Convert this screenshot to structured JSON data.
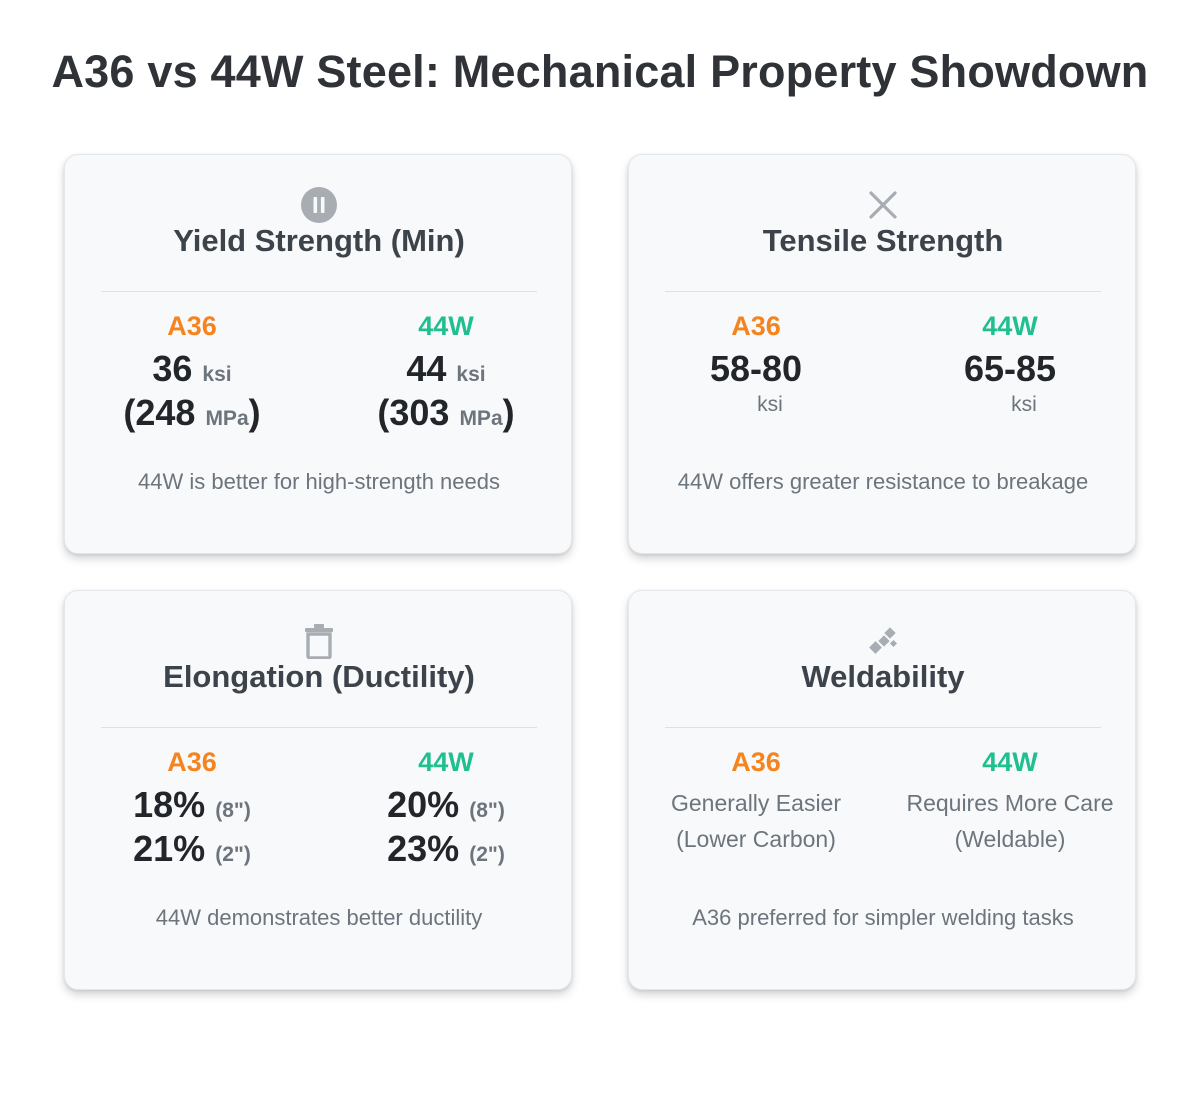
{
  "title": "A36 vs 44W Steel: Mechanical Property Showdown",
  "colors": {
    "a36": "#f5841f",
    "44w": "#1fbf8f",
    "icon": "#a7adb3"
  },
  "cards": [
    {
      "title": "Yield Strength (Min)",
      "icon": "pause-circle-icon",
      "a36": {
        "label": "A36",
        "value": "36",
        "unit": "ksi",
        "metric_open": "(248",
        "metric_unit": "MPa",
        "metric_close": ")"
      },
      "w44": {
        "label": "44W",
        "value": "44",
        "unit": "ksi",
        "metric_open": "(303",
        "metric_unit": "MPa",
        "metric_close": ")"
      },
      "note": "44W is better for high-strength needs"
    },
    {
      "title": "Tensile Strength",
      "icon": "close-x-icon",
      "a36": {
        "label": "A36",
        "value": "58-80",
        "unit": "ksi"
      },
      "w44": {
        "label": "44W",
        "value": "65-85",
        "unit": "ksi"
      },
      "note": "44W offers greater resistance to breakage"
    },
    {
      "title": "Elongation (Ductility)",
      "icon": "trash-icon",
      "a36": {
        "label": "A36",
        "line1_value": "18%",
        "line1_gauge": "(8\")",
        "line2_value": "21%",
        "line2_gauge": "(2\")"
      },
      "w44": {
        "label": "44W",
        "line1_value": "20%",
        "line1_gauge": "(8\")",
        "line2_value": "23%",
        "line2_gauge": "(2\")"
      },
      "note": "44W demonstrates better ductility"
    },
    {
      "title": "Weldability",
      "icon": "welding-sparks-icon",
      "a36": {
        "label": "A36",
        "line1": "Generally Easier",
        "line2": "(Lower Carbon)"
      },
      "w44": {
        "label": "44W",
        "line1": "Requires More Care",
        "line2": "(Weldable)"
      },
      "note": "A36 preferred for simpler welding tasks"
    }
  ]
}
